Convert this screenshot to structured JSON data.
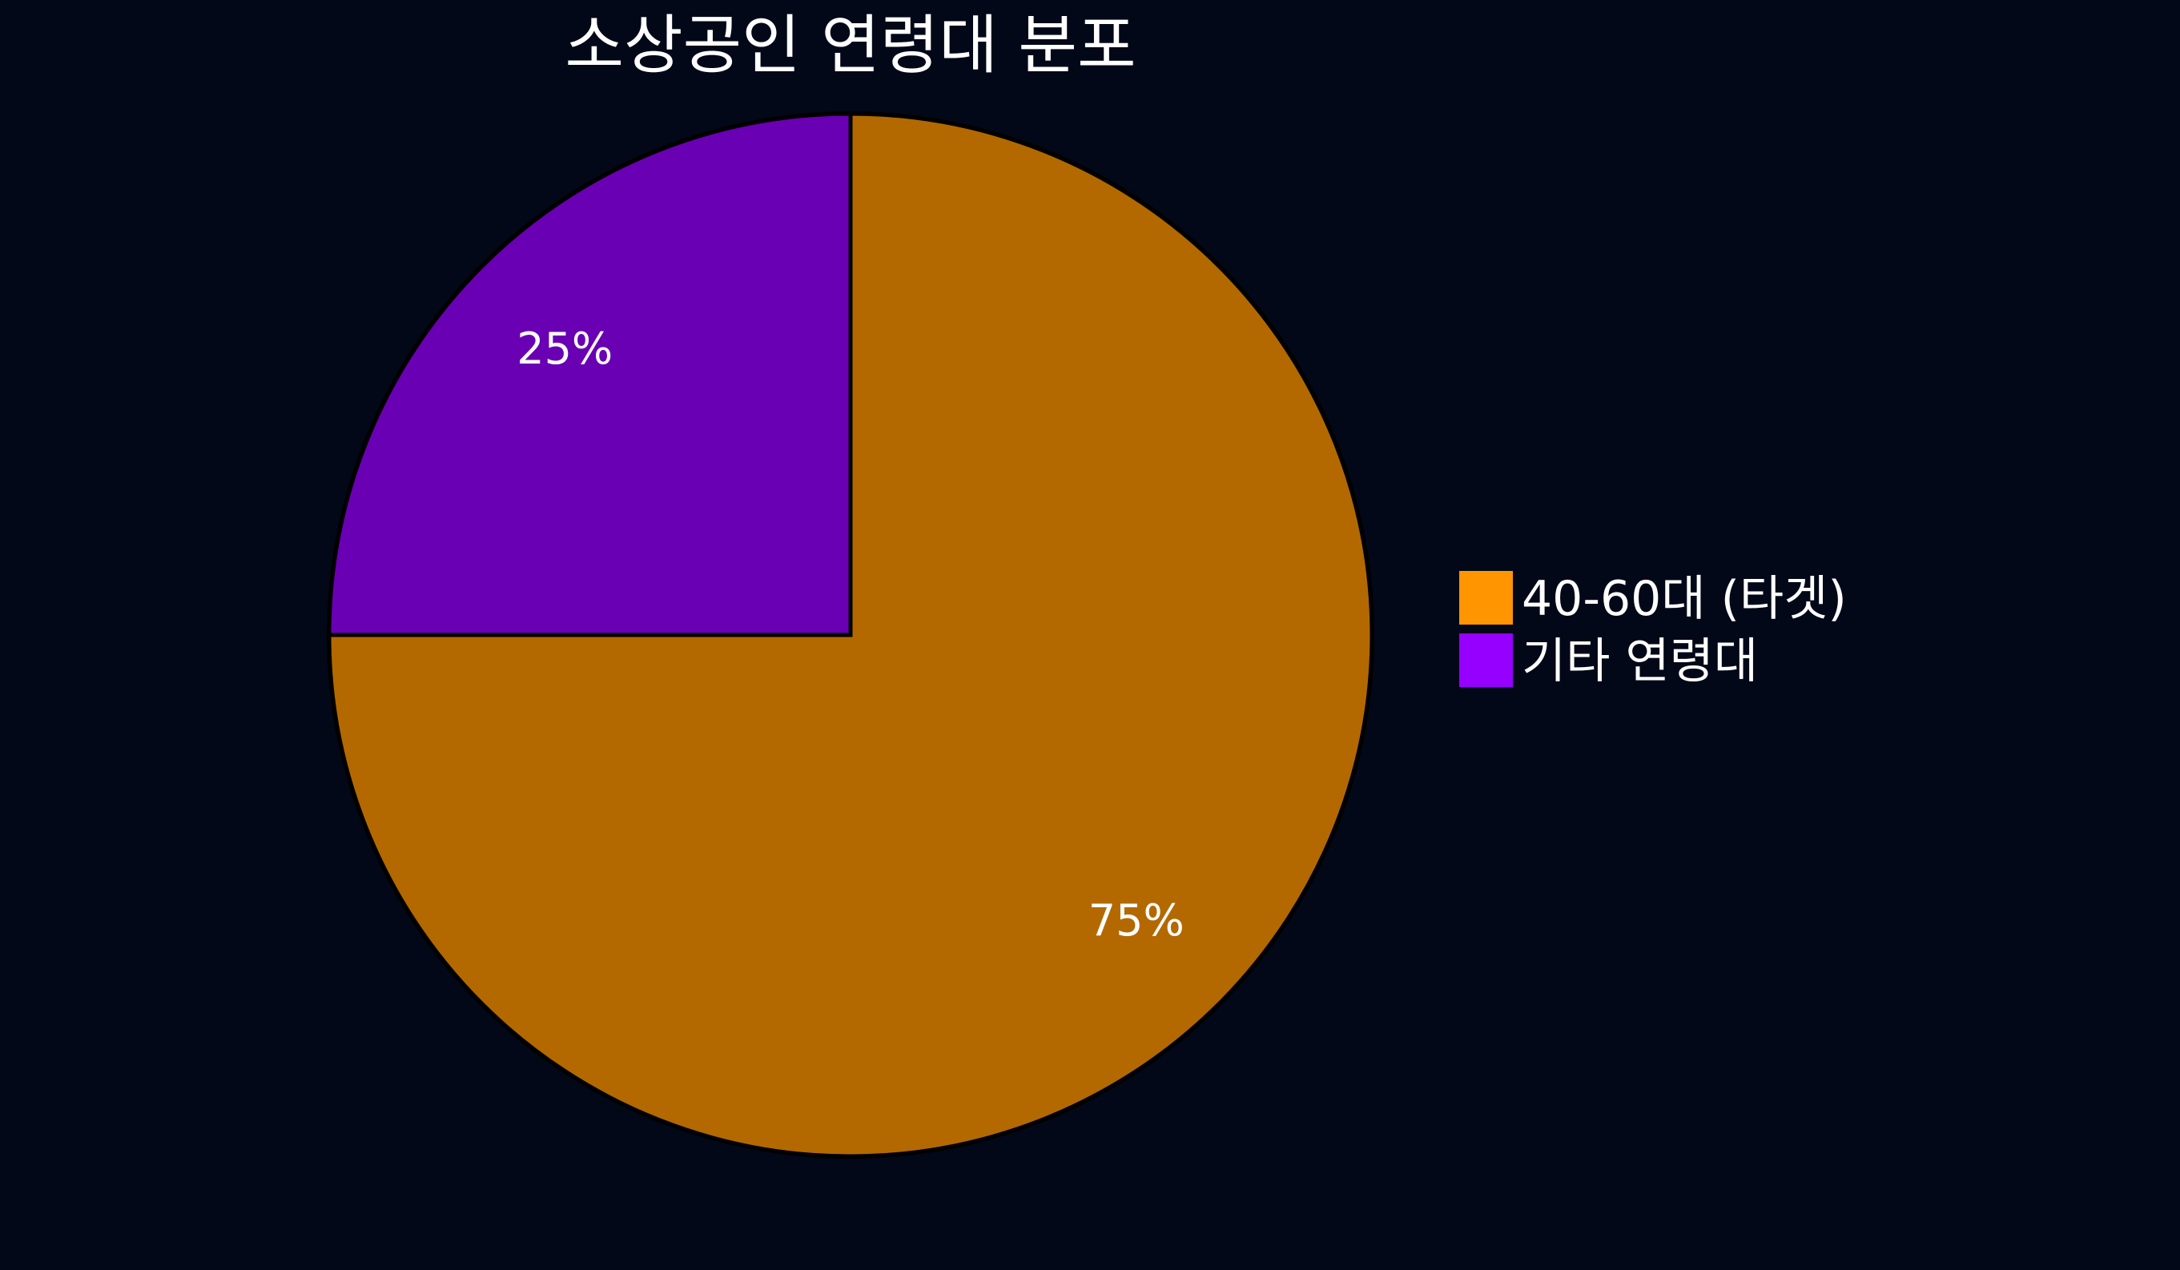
{
  "chart_data": {
    "type": "pie",
    "title": "소상공인 연령대 분포",
    "slices": [
      {
        "label": "40-60대 (타겟)",
        "value": 75,
        "data_label": "75%",
        "color": "#ff9500"
      },
      {
        "label": "기타 연령대",
        "value": 25,
        "data_label": "25%",
        "color": "#9500ff"
      }
    ],
    "start_angle": "12 o'clock",
    "direction": "first slice clockwise",
    "legend_position": "right",
    "background": "#020818",
    "slice_opacity": 0.7
  }
}
